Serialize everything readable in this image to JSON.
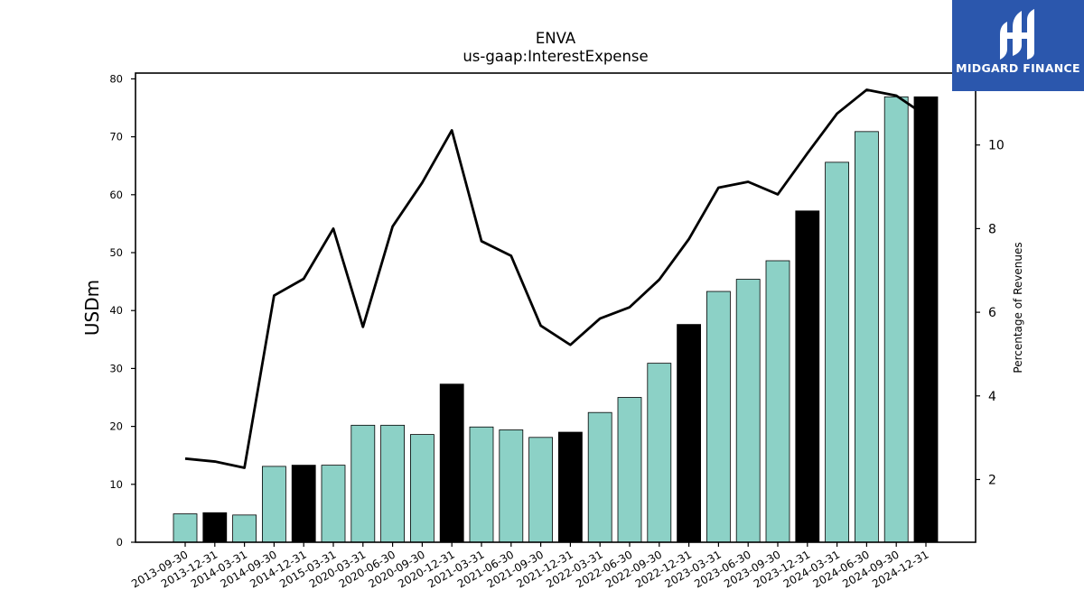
{
  "logo": {
    "text": "MIDGARD FINANCE"
  },
  "chart_data": {
    "type": "bar",
    "title": "ENVA",
    "subtitle": "us-gaap:InterestExpense",
    "ylabel": "USDm",
    "y2label": "Percentage of Revenues",
    "ylim": [
      0,
      81
    ],
    "y2lim": [
      0.5,
      11.72
    ],
    "yticks": [
      0,
      10,
      20,
      30,
      40,
      50,
      60,
      70,
      80
    ],
    "y2ticks": [
      2,
      4,
      6,
      8,
      10
    ],
    "categories": [
      "2013-09-30",
      "2013-12-31",
      "2014-03-31",
      "2014-09-30",
      "2014-12-31",
      "2015-03-31",
      "2020-03-31",
      "2020-06-30",
      "2020-09-30",
      "2020-12-31",
      "2021-03-31",
      "2021-06-30",
      "2021-09-30",
      "2021-12-31",
      "2022-03-31",
      "2022-06-30",
      "2022-09-30",
      "2022-12-31",
      "2023-03-31",
      "2023-06-30",
      "2023-09-30",
      "2023-12-31",
      "2024-03-31",
      "2024-06-30",
      "2024-09-30",
      "2024-12-31"
    ],
    "values": [
      4.9,
      5.1,
      4.7,
      13.1,
      13.3,
      13.3,
      20.2,
      20.2,
      18.6,
      27.3,
      19.9,
      19.4,
      18.1,
      19.0,
      22.4,
      25.0,
      30.9,
      37.6,
      43.3,
      45.4,
      48.6,
      57.2,
      65.6,
      70.9,
      76.9,
      76.9
    ],
    "bar_highlight": [
      false,
      true,
      false,
      false,
      true,
      false,
      false,
      false,
      false,
      true,
      false,
      false,
      false,
      true,
      false,
      false,
      false,
      true,
      false,
      false,
      false,
      true,
      false,
      false,
      false,
      true
    ],
    "line_values": [
      2.5,
      2.43,
      2.28,
      6.4,
      6.8,
      8.0,
      5.65,
      8.05,
      9.1,
      10.35,
      7.7,
      7.35,
      5.68,
      5.22,
      5.85,
      6.12,
      6.78,
      7.75,
      8.98,
      9.12,
      8.82,
      9.8,
      10.75,
      11.32,
      11.18,
      10.7
    ],
    "colors": {
      "bar": "#8cd1c6",
      "bar_highlight": "#000000",
      "line": "#000000",
      "edge": "#000000"
    },
    "grid": false
  }
}
